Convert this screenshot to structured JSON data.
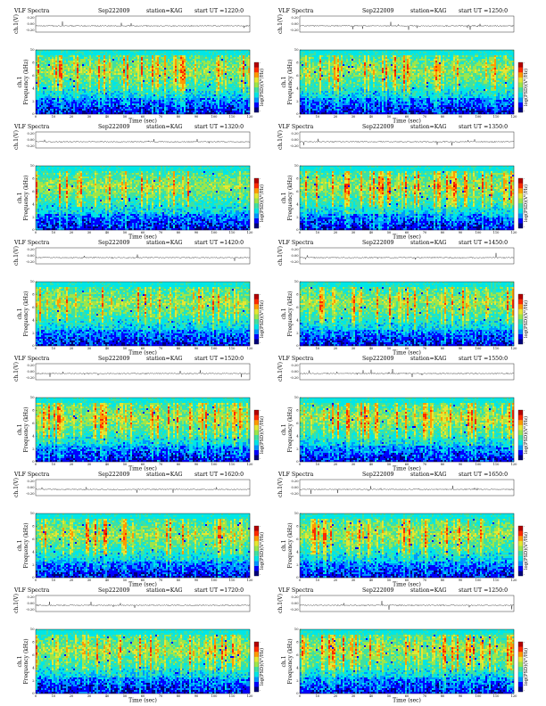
{
  "colors": {
    "colormap": [
      "#00007a",
      "#0000ff",
      "#0096ff",
      "#00e6e6",
      "#40e0a0",
      "#9be64b",
      "#e6e632",
      "#ff9a00",
      "#ff2a00",
      "#b40000"
    ],
    "trace": "#000000",
    "axis": "#000000"
  },
  "chart_data": [
    {
      "type": "heatmap",
      "header": {
        "left": "VLF Spectra",
        "date": "Sep222009",
        "station": "station=KAG",
        "start": "start  UT  =1220:0"
      },
      "trace_label": "ch.1(V)",
      "trace_ticks": [
        "0.20",
        "0.00",
        "-0.20"
      ],
      "trace_range": [
        -0.2,
        0.2
      ],
      "xlabel": "Time  (sec)",
      "xticks": [
        0,
        10,
        20,
        30,
        40,
        50,
        60,
        70,
        80,
        90,
        100,
        110,
        120
      ],
      "xlim": [
        0,
        120
      ],
      "ylabel": "Frequency  (kHz)",
      "ylabel_prefix": "ch.1",
      "yticks": [
        0,
        2,
        4,
        6,
        8,
        10
      ],
      "ylim": [
        0,
        10
      ],
      "colorbar_label": "log(PSD)(V²/Hz)",
      "colorbar_ticks": [
        "-",
        "-"
      ],
      "seed": 11
    },
    {
      "type": "heatmap",
      "header": {
        "left": "VLF Spectra",
        "date": "Sep222009",
        "station": "station=KAG",
        "start": "start  UT  =1250:0"
      },
      "trace_label": "ch.1(V)",
      "trace_ticks": [
        "0.20",
        "0.00",
        "-0.20"
      ],
      "trace_range": [
        -0.2,
        0.2
      ],
      "xlabel": "Time  (sec)",
      "xticks": [
        0,
        10,
        20,
        30,
        40,
        50,
        60,
        70,
        80,
        90,
        100,
        110,
        120
      ],
      "xlim": [
        0,
        120
      ],
      "ylabel": "Frequency  (kHz)",
      "ylabel_prefix": "ch.1",
      "yticks": [
        0,
        2,
        4,
        6,
        8,
        10
      ],
      "ylim": [
        0,
        10
      ],
      "colorbar_label": "log(PSD)(V²/Hz)",
      "colorbar_ticks": [
        "-",
        "-"
      ],
      "seed": 23
    },
    {
      "type": "heatmap",
      "header": {
        "left": "VLF Spectra",
        "date": "Sep222009",
        "station": "station=KAG",
        "start": "start  UT  =1320:0"
      },
      "trace_label": "ch.1(V)",
      "trace_ticks": [
        "0.20",
        "0.00",
        "-0.20"
      ],
      "trace_range": [
        -0.2,
        0.2
      ],
      "xlabel": "Time  (sec)",
      "xticks": [
        0,
        10,
        20,
        30,
        40,
        50,
        60,
        70,
        80,
        90,
        100,
        110,
        120
      ],
      "xlim": [
        0,
        120
      ],
      "ylabel": "Frequency  (kHz)",
      "ylabel_prefix": "ch.1",
      "yticks": [
        0,
        2,
        4,
        6,
        8,
        10
      ],
      "ylim": [
        0,
        10
      ],
      "colorbar_label": "log(PSD)(V²/Hz)",
      "colorbar_ticks": [
        "-",
        "-"
      ],
      "seed": 37
    },
    {
      "type": "heatmap",
      "header": {
        "left": "VLF Spectra",
        "date": "Sep222009",
        "station": "station=KAG",
        "start": "start  UT  =1350:0"
      },
      "trace_label": "ch.1(V)",
      "trace_ticks": [
        "0.20",
        "0.00",
        "-0.20"
      ],
      "trace_range": [
        -0.2,
        0.2
      ],
      "xlabel": "Time  (sec)",
      "xticks": [
        0,
        10,
        20,
        30,
        40,
        50,
        60,
        70,
        80,
        90,
        100,
        110,
        120
      ],
      "xlim": [
        0,
        120
      ],
      "ylabel": "Frequency  (kHz)",
      "ylabel_prefix": "ch.1",
      "yticks": [
        0,
        2,
        4,
        6,
        8,
        10
      ],
      "ylim": [
        0,
        10
      ],
      "colorbar_label": "log(PSD)(V²/Hz)",
      "colorbar_ticks": [
        "-",
        "-"
      ],
      "seed": 41
    },
    {
      "type": "heatmap",
      "header": {
        "left": "VLF Spectra",
        "date": "Sep222009",
        "station": "station=KAG",
        "start": "start  UT  =1420:0"
      },
      "trace_label": "ch.1(V)",
      "trace_ticks": [
        "0.20",
        "0.00",
        "-0.20"
      ],
      "trace_range": [
        -0.2,
        0.2
      ],
      "xlabel": "Time  (sec)",
      "xticks": [
        0,
        10,
        20,
        30,
        40,
        50,
        60,
        70,
        80,
        90,
        100,
        110,
        120
      ],
      "xlim": [
        0,
        120
      ],
      "ylabel": "Frequency  (kHz)",
      "ylabel_prefix": "ch.1",
      "yticks": [
        0,
        2,
        4,
        6,
        8,
        10
      ],
      "ylim": [
        0,
        10
      ],
      "colorbar_label": "log(PSD)(V²/Hz)",
      "colorbar_ticks": [
        "-",
        "-"
      ],
      "seed": 53
    },
    {
      "type": "heatmap",
      "header": {
        "left": "VLF Spectra",
        "date": "Sep222009",
        "station": "station=KAG",
        "start": "start  UT  =1450:0"
      },
      "trace_label": "ch.1(V)",
      "trace_ticks": [
        "0.20",
        "0.00",
        "-0.20"
      ],
      "trace_range": [
        -0.2,
        0.2
      ],
      "xlabel": "Time  (sec)",
      "xticks": [
        0,
        10,
        20,
        30,
        40,
        50,
        60,
        70,
        80,
        90,
        100,
        110,
        120
      ],
      "xlim": [
        0,
        120
      ],
      "ylabel": "Frequency  (kHz)",
      "ylabel_prefix": "ch.1",
      "yticks": [
        0,
        2,
        4,
        6,
        8,
        10
      ],
      "ylim": [
        0,
        10
      ],
      "colorbar_label": "log(PSD)(V²/Hz)",
      "colorbar_ticks": [
        "-",
        "-"
      ],
      "seed": 67
    },
    {
      "type": "heatmap",
      "header": {
        "left": "VLF Spectra",
        "date": "Sep222009",
        "station": "station=KAG",
        "start": "start  UT  =1520:0"
      },
      "trace_label": "ch.1(V)",
      "trace_ticks": [
        "0.20",
        "0.00",
        "-0.20"
      ],
      "trace_range": [
        -0.2,
        0.2
      ],
      "xlabel": "Time  (sec)",
      "xticks": [
        0,
        10,
        20,
        30,
        40,
        50,
        60,
        70,
        80,
        90,
        100,
        110,
        120
      ],
      "xlim": [
        0,
        120
      ],
      "ylabel": "Frequency  (kHz)",
      "ylabel_prefix": "ch.1",
      "yticks": [
        0,
        2,
        4,
        6,
        8,
        10
      ],
      "ylim": [
        0,
        10
      ],
      "colorbar_label": "log(PSD)(V²/Hz)",
      "colorbar_ticks": [
        "-",
        "-"
      ],
      "seed": 71
    },
    {
      "type": "heatmap",
      "header": {
        "left": "VLF Spectra",
        "date": "Sep222009",
        "station": "station=KAG",
        "start": "start  UT  =1550:0"
      },
      "trace_label": "ch.1(V)",
      "trace_ticks": [
        "0.20",
        "0.00",
        "-0.20"
      ],
      "trace_range": [
        -0.2,
        0.2
      ],
      "xlabel": "Time  (sec)",
      "xticks": [
        0,
        10,
        20,
        30,
        40,
        50,
        60,
        70,
        80,
        90,
        100,
        110,
        120
      ],
      "xlim": [
        0,
        120
      ],
      "ylabel": "Frequency  (kHz)",
      "ylabel_prefix": "ch.1",
      "yticks": [
        0,
        2,
        4,
        6,
        8,
        10
      ],
      "ylim": [
        0,
        10
      ],
      "colorbar_label": "log(PSD)(V²/Hz)",
      "colorbar_ticks": [
        "-",
        "-"
      ],
      "seed": 83
    },
    {
      "type": "heatmap",
      "header": {
        "left": "VLF Spectra",
        "date": "Sep222009",
        "station": "station=KAG",
        "start": "start  UT  =1620:0"
      },
      "trace_label": "ch.1(V)",
      "trace_ticks": [
        "0.20",
        "0.00",
        "-0.20"
      ],
      "trace_range": [
        -0.2,
        0.2
      ],
      "xlabel": "Time  (sec)",
      "xticks": [
        0,
        10,
        20,
        30,
        40,
        50,
        60,
        70,
        80,
        90,
        100,
        110,
        120
      ],
      "xlim": [
        0,
        120
      ],
      "ylabel": "Frequency  (kHz)",
      "ylabel_prefix": "ch.1",
      "yticks": [
        0,
        2,
        4,
        6,
        8,
        10
      ],
      "ylim": [
        0,
        10
      ],
      "colorbar_label": "log(PSD)(V²/Hz)",
      "colorbar_ticks": [
        "-",
        "-"
      ],
      "seed": 97
    },
    {
      "type": "heatmap",
      "header": {
        "left": "VLF Spectra",
        "date": "Sep222009",
        "station": "station=KAG",
        "start": "start  UT  =1650:0"
      },
      "trace_label": "ch.1(V)",
      "trace_ticks": [
        "0.20",
        "0.00",
        "-0.20"
      ],
      "trace_range": [
        -0.2,
        0.2
      ],
      "xlabel": "Time  (sec)",
      "xticks": [
        0,
        10,
        20,
        30,
        40,
        50,
        60,
        70,
        80,
        90,
        100,
        110,
        120
      ],
      "xlim": [
        0,
        120
      ],
      "ylabel": "Frequency  (kHz)",
      "ylabel_prefix": "ch.1",
      "yticks": [
        0,
        2,
        4,
        6,
        8,
        10
      ],
      "ylim": [
        0,
        10
      ],
      "colorbar_label": "log(PSD)(V²/Hz)",
      "colorbar_ticks": [
        "-",
        "-"
      ],
      "seed": 101
    },
    {
      "type": "heatmap",
      "header": {
        "left": "VLF Spectra",
        "date": "Sep222009",
        "station": "station=KAG",
        "start": "start  UT  =1720:0"
      },
      "trace_label": "ch.1(V)",
      "trace_ticks": [
        "0.20",
        "0.00",
        "-0.20"
      ],
      "trace_range": [
        -0.2,
        0.2
      ],
      "xlabel": "Time  (sec)",
      "xticks": [
        0,
        10,
        20,
        30,
        40,
        50,
        60,
        70,
        80,
        90,
        100,
        110,
        120
      ],
      "xlim": [
        0,
        120
      ],
      "ylabel": "Frequency  (kHz)",
      "ylabel_prefix": "ch.1",
      "yticks": [
        0,
        2,
        4,
        6,
        8,
        10
      ],
      "ylim": [
        0,
        10
      ],
      "colorbar_label": "log(PSD)(V²/Hz)",
      "colorbar_ticks": [
        "-",
        "-"
      ],
      "seed": 113
    },
    {
      "type": "heatmap",
      "header": {
        "left": "VLF Spectra",
        "date": "Sep222009",
        "station": "station=KAG",
        "start": "start  UT  =1250:0"
      },
      "trace_label": "ch.1(V)",
      "trace_ticks": [
        "0.20",
        "0.00",
        "-0.20"
      ],
      "trace_range": [
        -0.2,
        0.2
      ],
      "xlabel": "Time  (sec)",
      "xticks": [
        0,
        10,
        20,
        30,
        40,
        50,
        60,
        70,
        80,
        90,
        100,
        110,
        120
      ],
      "xlim": [
        0,
        120
      ],
      "ylabel": "Frequency  (kHz)",
      "ylabel_prefix": "ch.1",
      "yticks": [
        0,
        2,
        4,
        6,
        8,
        10
      ],
      "ylim": [
        0,
        10
      ],
      "colorbar_label": "log(PSD)(V²/Hz)",
      "colorbar_ticks": [
        "-",
        "-"
      ],
      "seed": 127
    }
  ]
}
